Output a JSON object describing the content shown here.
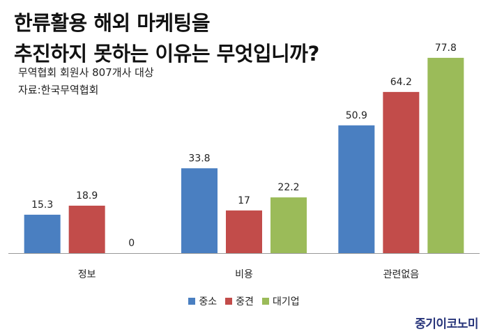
{
  "title": {
    "line1": "한류활용 해외 마케팅을",
    "line2": "추진하지 못하는 이유는 무엇입니까?"
  },
  "subtitle": {
    "line1": "무역협회 회원사 807개사 대상",
    "line2": "자료:한국무역협회"
  },
  "brand": "중기이코노미",
  "chart_data": {
    "type": "bar",
    "categories": [
      "정보",
      "비용",
      "관련없음"
    ],
    "series": [
      {
        "name": "중소",
        "color": "#4a7fc1",
        "values": [
          15.3,
          33.8,
          50.9
        ]
      },
      {
        "name": "중견",
        "color": "#c24c4a",
        "values": [
          18.9,
          17,
          64.2
        ]
      },
      {
        "name": "대기업",
        "color": "#9bbb59",
        "values": [
          0,
          22.2,
          77.8
        ]
      }
    ],
    "ylim": [
      0,
      80
    ],
    "grid": false,
    "legend": "bottom"
  }
}
